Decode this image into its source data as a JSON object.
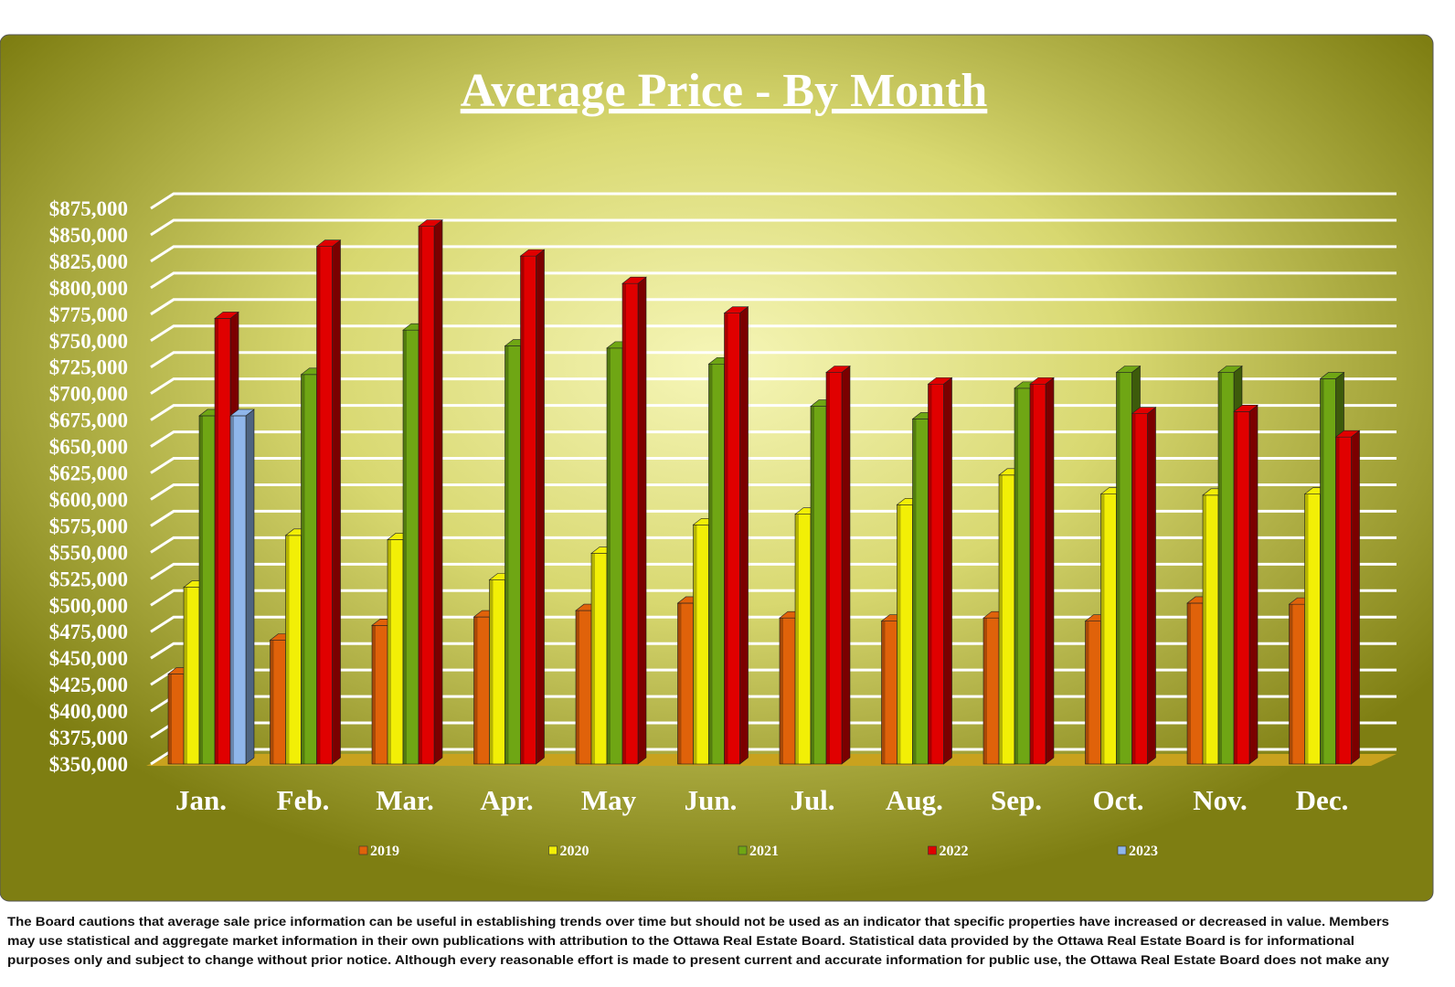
{
  "chart_data": {
    "type": "bar",
    "title": "Average Price - By Month",
    "categories": [
      "Jan.",
      "Feb.",
      "Mar.",
      "Apr.",
      "May",
      "Jun.",
      "Jul.",
      "Aug.",
      "Sep.",
      "Oct.",
      "Nov.",
      "Dec."
    ],
    "series": [
      {
        "name": "2019",
        "color": "#e0620a",
        "values": [
          435000,
          467000,
          481000,
          489000,
          495000,
          502000,
          488000,
          485000,
          488000,
          485000,
          502000,
          501000
        ]
      },
      {
        "name": "2020",
        "color": "#f2ef06",
        "values": [
          517000,
          566000,
          562000,
          524000,
          549000,
          576000,
          586000,
          595000,
          623000,
          605000,
          604000,
          605000
        ]
      },
      {
        "name": "2021",
        "color": "#6fa614",
        "values": [
          679000,
          718000,
          760000,
          745000,
          743000,
          728000,
          688000,
          676000,
          705000,
          720000,
          720000,
          714000
        ]
      },
      {
        "name": "2022",
        "color": "#e00000",
        "values": [
          771000,
          839000,
          858000,
          830000,
          804000,
          776000,
          720000,
          709000,
          709000,
          681000,
          683000,
          659000
        ]
      },
      {
        "name": "2023",
        "color": "#8fb6ea",
        "values": [
          679000,
          null,
          null,
          null,
          null,
          null,
          null,
          null,
          null,
          null,
          null,
          null
        ]
      }
    ],
    "ylim": [
      350000,
      875000
    ],
    "yticks": [
      {
        "value": 350000,
        "label": "$350,000"
      },
      {
        "value": 375000,
        "label": "$375,000"
      },
      {
        "value": 400000,
        "label": "$400,000"
      },
      {
        "value": 425000,
        "label": "$425,000"
      },
      {
        "value": 450000,
        "label": "$450,000"
      },
      {
        "value": 475000,
        "label": "$475,000"
      },
      {
        "value": 500000,
        "label": "$500,000"
      },
      {
        "value": 525000,
        "label": "$525,000"
      },
      {
        "value": 550000,
        "label": "$550,000"
      },
      {
        "value": 575000,
        "label": "$575,000"
      },
      {
        "value": 600000,
        "label": "$600,000"
      },
      {
        "value": 625000,
        "label": "$625,000"
      },
      {
        "value": 650000,
        "label": "$650,000"
      },
      {
        "value": 675000,
        "label": "$675,000"
      },
      {
        "value": 700000,
        "label": "$700,000"
      },
      {
        "value": 725000,
        "label": "$725,000"
      },
      {
        "value": 750000,
        "label": "$750,000"
      },
      {
        "value": 775000,
        "label": "$775,000"
      },
      {
        "value": 800000,
        "label": "$800,000"
      },
      {
        "value": 825000,
        "label": "$825,000"
      },
      {
        "value": 850000,
        "label": "$850,000"
      },
      {
        "value": 875000,
        "label": "$875,000"
      }
    ],
    "grid": true,
    "legend": "bottom"
  },
  "footer": {
    "lines": [
      "The Board cautions that average sale price information can be useful in establishing trends over time but should not be used as an indicator that specific properties have increased or decreased in value.  Members",
      "may use statistical and aggregate market information in their own publications with attribution to the Ottawa Real Estate Board. Statistical data provided by the Ottawa Real Estate Board is for informational",
      "purposes only and subject to change without prior notice. Although every reasonable effort is made to present current and accurate information for public use, the Ottawa Real Estate Board does not make any"
    ]
  }
}
